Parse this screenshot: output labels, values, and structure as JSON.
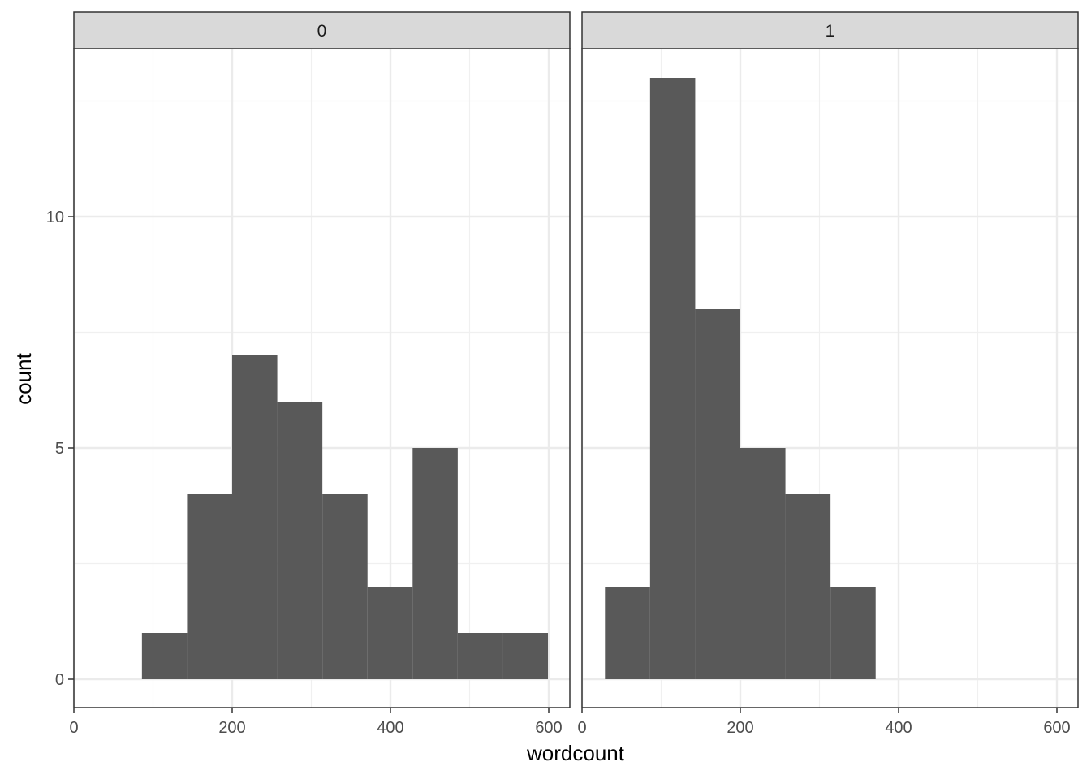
{
  "chart_data": {
    "type": "bar",
    "subtype": "histogram-faceted",
    "xlabel": "wordcount",
    "ylabel": "count",
    "xlim": [
      0,
      600
    ],
    "ylim": [
      0,
      13
    ],
    "x_ticks": [
      0,
      200,
      400,
      600
    ],
    "y_ticks": [
      0,
      5,
      10
    ],
    "x_tick_labels": [
      "0",
      "200",
      "400",
      "600"
    ],
    "y_tick_labels": [
      "0",
      "5",
      "10"
    ],
    "bin_width": 57,
    "grid": true,
    "bar_color": "#595959",
    "facets": [
      {
        "label": "0",
        "bins": [
          {
            "start": 86,
            "end": 143,
            "count": 1
          },
          {
            "start": 143,
            "end": 200,
            "count": 4
          },
          {
            "start": 200,
            "end": 257,
            "count": 7
          },
          {
            "start": 257,
            "end": 314,
            "count": 6
          },
          {
            "start": 314,
            "end": 371,
            "count": 4
          },
          {
            "start": 371,
            "end": 428,
            "count": 2
          },
          {
            "start": 428,
            "end": 485,
            "count": 5
          },
          {
            "start": 485,
            "end": 542,
            "count": 1
          },
          {
            "start": 542,
            "end": 599,
            "count": 1
          }
        ]
      },
      {
        "label": "1",
        "bins": [
          {
            "start": 29,
            "end": 86,
            "count": 2
          },
          {
            "start": 86,
            "end": 143,
            "count": 13
          },
          {
            "start": 143,
            "end": 200,
            "count": 8
          },
          {
            "start": 200,
            "end": 257,
            "count": 5
          },
          {
            "start": 257,
            "end": 314,
            "count": 4
          },
          {
            "start": 314,
            "end": 371,
            "count": 2
          }
        ]
      }
    ]
  }
}
